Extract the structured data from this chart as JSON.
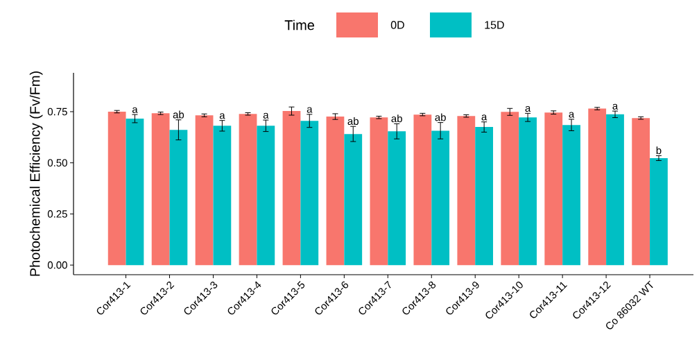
{
  "chart_data": {
    "type": "bar",
    "ylabel": "Photochemical Efficiency (Fv/Fm)",
    "legend_title": "Time",
    "legend": "top",
    "grid": false,
    "categories": [
      "Cor413-1",
      "Cor413-2",
      "Cor413-3",
      "Cor413-4",
      "Cor413-5",
      "Cor413-6",
      "Cor413-7",
      "Cor413-8",
      "Cor413-9",
      "Cor413-10",
      "Cor413-11",
      "Cor413-12",
      "Co 86032 WT"
    ],
    "series": [
      {
        "name": "0D",
        "color": "#f8766d",
        "values": [
          0.75,
          0.742,
          0.732,
          0.739,
          0.753,
          0.726,
          0.722,
          0.736,
          0.729,
          0.749,
          0.746,
          0.765,
          0.719
        ],
        "errors": [
          0.006,
          0.006,
          0.007,
          0.006,
          0.02,
          0.014,
          0.006,
          0.006,
          0.006,
          0.017,
          0.008,
          0.006,
          0.006
        ]
      },
      {
        "name": "15D",
        "color": "#00bfc4",
        "values": [
          0.716,
          0.661,
          0.681,
          0.681,
          0.705,
          0.641,
          0.654,
          0.657,
          0.675,
          0.722,
          0.685,
          0.737,
          0.523
        ],
        "errors": [
          0.02,
          0.049,
          0.026,
          0.028,
          0.032,
          0.037,
          0.037,
          0.04,
          0.025,
          0.02,
          0.028,
          0.016,
          0.012
        ]
      }
    ],
    "ylim": [
      -0.047,
      0.94
    ],
    "yticks": [
      {
        "value": 0,
        "label": "0.00"
      },
      {
        "value": 0.25,
        "label": "0.25"
      },
      {
        "value": 0.5,
        "label": "0.50"
      },
      {
        "value": 0.75,
        "label": "0.75"
      }
    ],
    "annotations": [
      {
        "text": "a",
        "x": "Cor413-1",
        "y": 0.736
      },
      {
        "text": "ab",
        "x": "Cor413-2",
        "y": 0.71
      },
      {
        "text": "a",
        "x": "Cor413-3",
        "y": 0.707
      },
      {
        "text": "a",
        "x": "Cor413-4",
        "y": 0.709
      },
      {
        "text": "a",
        "x": "Cor413-5",
        "y": 0.737
      },
      {
        "text": "ab",
        "x": "Cor413-6",
        "y": 0.678
      },
      {
        "text": "ab",
        "x": "Cor413-7",
        "y": 0.691
      },
      {
        "text": "ab",
        "x": "Cor413-8",
        "y": 0.697
      },
      {
        "text": "a",
        "x": "Cor413-9",
        "y": 0.7
      },
      {
        "text": "a",
        "x": "Cor413-10",
        "y": 0.742
      },
      {
        "text": "a",
        "x": "Cor413-11",
        "y": 0.713
      },
      {
        "text": "a",
        "x": "Cor413-12",
        "y": 0.753
      },
      {
        "text": "b",
        "x": "Co 86032 WT",
        "y": 0.535
      }
    ]
  }
}
